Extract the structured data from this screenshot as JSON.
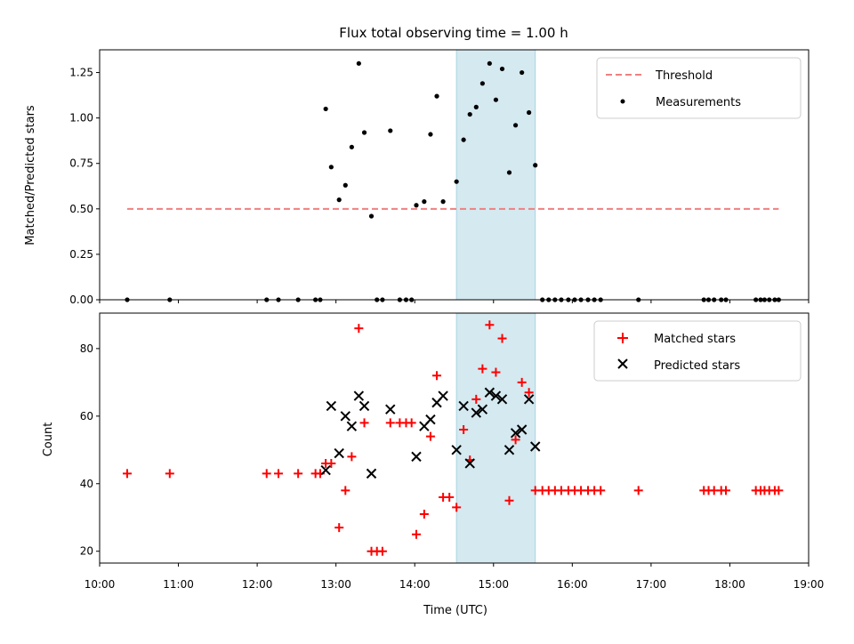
{
  "chart_data": [
    {
      "type": "scatter",
      "title": "Flux total observing time = 1.00 h",
      "xlabel": "",
      "ylabel": "Matched/Predicted stars",
      "xlim": [
        10.0,
        19.0
      ],
      "ylim": [
        0.0,
        1.375
      ],
      "y_ticks": [
        "0.00",
        "0.25",
        "0.50",
        "0.75",
        "1.00",
        "1.25"
      ],
      "y_tick_values": [
        0,
        0.25,
        0.5,
        0.75,
        1.0,
        1.25
      ],
      "shaded_region": {
        "x": [
          14.53,
          15.53
        ],
        "color": "#d4e9f0"
      },
      "threshold": {
        "name": "Threshold",
        "y": 0.5,
        "x": [
          10.35,
          18.62
        ],
        "color": "#f08080",
        "style": "dashed"
      },
      "series": [
        {
          "name": "Measurements",
          "color": "#000000",
          "marker": "dot",
          "x": [
            10.35,
            10.89,
            12.12,
            12.27,
            12.52,
            12.74,
            12.8,
            12.87,
            12.94,
            13.04,
            13.12,
            13.2,
            13.29,
            13.36,
            13.45,
            13.52,
            13.59,
            13.69,
            13.81,
            13.89,
            13.96,
            14.02,
            14.12,
            14.2,
            14.28,
            14.36,
            14.53,
            14.62,
            14.7,
            14.78,
            14.86,
            14.95,
            15.03,
            15.11,
            15.2,
            15.28,
            15.36,
            15.45,
            15.53,
            15.62,
            15.7,
            15.78,
            15.86,
            15.95,
            16.03,
            16.11,
            16.2,
            16.28,
            16.36,
            16.84,
            17.67,
            17.73,
            17.8,
            17.89,
            17.95,
            18.33,
            18.39,
            18.44,
            18.5,
            18.57,
            18.62
          ],
          "y": [
            0.0,
            0.0,
            0.0,
            0.0,
            0.0,
            0.0,
            0.0,
            1.05,
            0.73,
            0.55,
            0.63,
            0.84,
            1.3,
            0.92,
            0.46,
            0.0,
            0.0,
            0.93,
            0.0,
            0.0,
            0.0,
            0.52,
            0.54,
            0.91,
            1.12,
            0.54,
            0.65,
            0.88,
            1.02,
            1.06,
            1.19,
            1.3,
            1.1,
            1.27,
            0.7,
            0.96,
            1.25,
            1.03,
            0.74,
            0.0,
            0.0,
            0.0,
            0.0,
            0.0,
            0.0,
            0.0,
            0.0,
            0.0,
            0.0,
            0.0,
            0.0,
            0.0,
            0.0,
            0.0,
            0.0,
            0.0,
            0.0,
            0.0,
            0.0,
            0.0,
            0.0
          ]
        }
      ],
      "legend": [
        "Threshold",
        "Measurements"
      ],
      "legend_position": "top-right"
    },
    {
      "type": "scatter",
      "title": "",
      "xlabel": "Time (UTC)",
      "ylabel": "Count",
      "xlim": [
        10.0,
        19.0
      ],
      "ylim": [
        16.5,
        90.5
      ],
      "x_ticks": [
        "10:00",
        "11:00",
        "12:00",
        "13:00",
        "14:00",
        "15:00",
        "16:00",
        "17:00",
        "18:00",
        "19:00"
      ],
      "x_tick_values": [
        10,
        11,
        12,
        13,
        14,
        15,
        16,
        17,
        18,
        19
      ],
      "y_ticks": [
        "20",
        "40",
        "60",
        "80"
      ],
      "y_tick_values": [
        20,
        40,
        60,
        80
      ],
      "shaded_region": {
        "x": [
          14.53,
          15.53
        ],
        "color": "#d4e9f0"
      },
      "series": [
        {
          "name": "Matched stars",
          "color": "#ff0000",
          "marker": "plus",
          "x": [
            10.35,
            10.89,
            12.12,
            12.27,
            12.52,
            12.74,
            12.8,
            12.87,
            12.94,
            13.04,
            13.12,
            13.2,
            13.29,
            13.36,
            13.45,
            13.52,
            13.59,
            13.69,
            13.81,
            13.89,
            13.96,
            14.02,
            14.12,
            14.2,
            14.28,
            14.36,
            14.44,
            14.53,
            14.62,
            14.7,
            14.78,
            14.86,
            14.95,
            15.03,
            15.11,
            15.2,
            15.28,
            15.36,
            15.45,
            15.53,
            15.62,
            15.7,
            15.78,
            15.86,
            15.95,
            16.03,
            16.11,
            16.2,
            16.28,
            16.36,
            16.84,
            17.67,
            17.73,
            17.8,
            17.89,
            17.95,
            18.33,
            18.39,
            18.44,
            18.5,
            18.57,
            18.62
          ],
          "y": [
            43,
            43,
            43,
            43,
            43,
            43,
            43,
            46,
            46,
            27,
            38,
            48,
            86,
            58,
            20,
            20,
            20,
            58,
            58,
            58,
            58,
            25,
            31,
            54,
            72,
            36,
            36,
            33,
            56,
            47,
            65,
            74,
            87,
            73,
            83,
            35,
            53,
            70,
            67,
            38,
            38,
            38,
            38,
            38,
            38,
            38,
            38,
            38,
            38,
            38,
            38,
            38,
            38,
            38,
            38,
            38,
            38,
            38,
            38,
            38,
            38,
            38
          ]
        },
        {
          "name": "Predicted stars",
          "color": "#000000",
          "marker": "x",
          "x": [
            12.87,
            12.94,
            13.04,
            13.12,
            13.2,
            13.29,
            13.36,
            13.45,
            13.69,
            14.02,
            14.12,
            14.2,
            14.28,
            14.36,
            14.53,
            14.62,
            14.7,
            14.78,
            14.86,
            14.95,
            15.03,
            15.11,
            15.2,
            15.28,
            15.36,
            15.45,
            15.53
          ],
          "y": [
            44,
            63,
            49,
            60,
            57,
            66,
            63,
            43,
            62,
            48,
            57,
            59,
            64,
            66,
            50,
            63,
            46,
            61,
            62,
            67,
            66,
            65,
            50,
            55,
            56,
            65,
            51
          ]
        }
      ],
      "legend": [
        "Matched stars",
        "Predicted stars"
      ],
      "legend_position": "top-right"
    }
  ]
}
